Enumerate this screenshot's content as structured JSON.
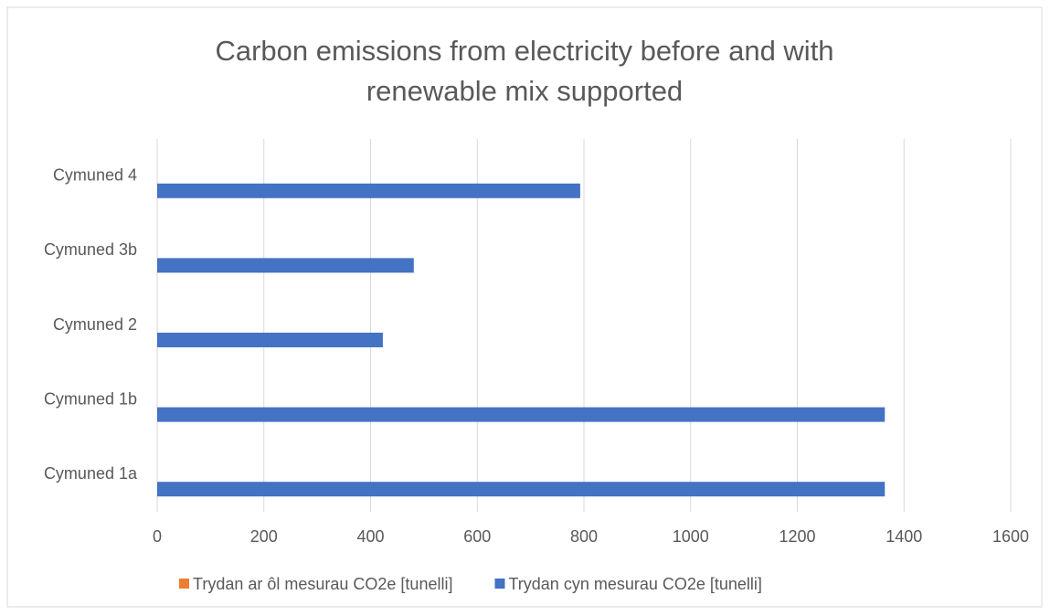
{
  "chart_data": {
    "type": "hbar",
    "title": "Carbon emissions from electricity before and with renewable mix supported",
    "categories": [
      "Cymuned 1a",
      "Cymuned 1b",
      "Cymuned 2",
      "Cymuned 3b",
      "Cymuned 4"
    ],
    "series": [
      {
        "name": "Trydan ar ôl mesurau CO2e [tunelli]",
        "color": "#ed7d31",
        "values": [
          0,
          0,
          0,
          0,
          0
        ]
      },
      {
        "name": "Trydan cyn mesurau CO2e [tunelli]",
        "color": "#4472c4",
        "values": [
          1364,
          1364,
          423,
          481,
          793
        ]
      }
    ],
    "xlim": [
      0,
      1600
    ],
    "xticks": [
      0,
      200,
      400,
      600,
      800,
      1000,
      1200,
      1400,
      1600
    ],
    "grid": true,
    "legend": "bottom"
  }
}
